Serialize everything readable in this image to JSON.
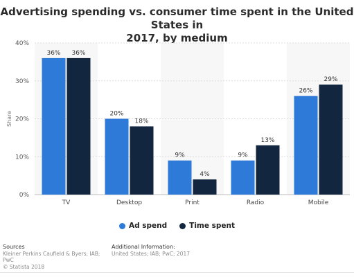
{
  "title_line1": "Advertising spending vs. consumer time spent in the United States in",
  "title_line2": "2017, by medium",
  "colors": {
    "ad_spend": "#2e7ad8",
    "time_spent": "#12263f"
  },
  "chart_data": {
    "type": "bar",
    "categories": [
      "TV",
      "Desktop",
      "Print",
      "Radio",
      "Mobile"
    ],
    "series": [
      {
        "name": "Ad spend",
        "values": [
          36,
          20,
          9,
          9,
          26
        ],
        "labels": [
          "36%",
          "20%",
          "9%",
          "9%",
          "26%"
        ]
      },
      {
        "name": "Time spent",
        "values": [
          36,
          18,
          4,
          13,
          29
        ],
        "labels": [
          "36%",
          "18%",
          "4%",
          "13%",
          "29%"
        ]
      }
    ],
    "ylabel": "Share",
    "yticks": [
      "0%",
      "10%",
      "20%",
      "30%",
      "40%"
    ],
    "ylim": [
      0,
      40
    ],
    "grid": true,
    "legend_position": "bottom"
  },
  "legend": {
    "ad_spend": "Ad spend",
    "time_spent": "Time spent"
  },
  "footer": {
    "sources_heading": "Sources",
    "sources_text": "Kleiner Perkins Caufield & Byers; IAB; PwC",
    "copyright": "© Statista 2018",
    "info_heading": "Additional Information:",
    "info_text": "United States; IAB; PwC; 2017"
  }
}
